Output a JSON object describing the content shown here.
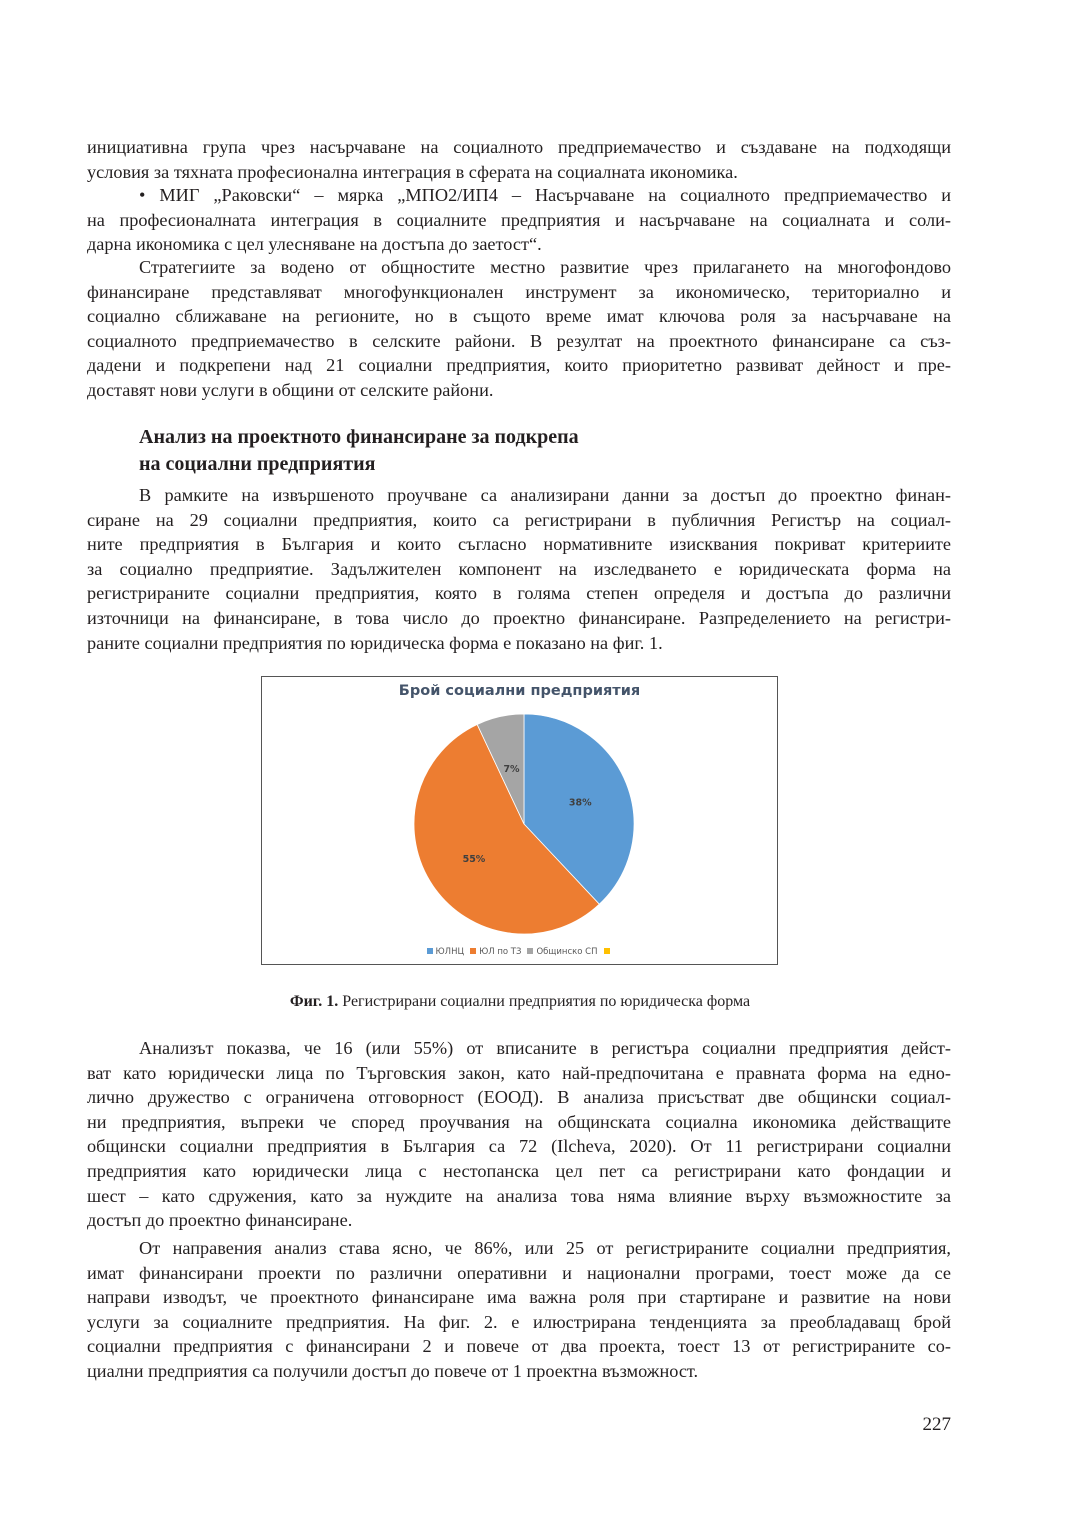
{
  "paragraphs": {
    "p1": [
      "инициативна група чрез насърчаване на социалното предприемачество и създаване на подходящи",
      "условия за тяхната професионална интеграция в сферата на социалната икономика."
    ],
    "p2": [
      "• МИГ „Раковски“ – мярка „МПО2/ИП4 – Насърчаване на социалното предприемачество и",
      "на професионалната интеграция в социалните предприятия и насърчаване на социалната и соли-",
      "дарна икономика с цел улесняване на достъпа до заетост“."
    ],
    "p3": [
      "Стратегиите за водено от общностите местно развитие чрез прилагането на многофондово",
      "финансиране представляват многофункционален инструмент за икономическо, териториално и",
      "социално сближаване на регионите, но в същото време имат ключова роля за насърчаване на",
      "социалното предприемачество в селските райони. В резултат на проектното финансиране са съз-",
      "дадени и подкрепени над 21 социални предприятия, които приоритетно развиват дейност и пре-",
      "доставят нови услуги в общини от селските райони."
    ],
    "p4": [
      "В рамките на извършеното проучване са анализирани данни за достъп до проектно финан-",
      "сиране на 29 социални предприятия, които са регистрирани в публичния Регистър на социал-",
      "ните предприятия в България и които съгласно нормативните изисквания покриват критериите",
      "за социално предприятие. Задължителен компонент на изследването е юридическата форма на",
      "регистрираните социални предприятия, която в голяма степен определя и достъпа до различни",
      "източници на финансиране, в това число до проектно финансиране. Разпределението на регистри-",
      "раните социални предприятия по юридическа форма е показано на фиг. 1."
    ],
    "p5": [
      "Анализът показва, че 16 (или 55%) от вписаните в регистъра социални предприятия дейст-",
      "ват като юридически лица по Търговския закон, като най-предпочитана е правната форма на едно-",
      "лично дружество с ограничена отговорност (ЕООД). В анализа присъстват две общински социал-",
      "ни предприятия, въпреки че според проучвания на общинската социална икономика действащите",
      "общински социални предприятия в България са 72 (Ilcheva, 2020). От 11 регистрирани социални",
      "предприятия като юридически лица с нестопанска цел пет са регистрирани като фондации и",
      "шест  – като сдружения, като за нуждите на анализа това няма влияние върху възможностите за",
      "достъп до проектно финансиране."
    ],
    "p6": [
      "От направения анализ става ясно, че 86%, или 25 от регистрираните социални предприятия,",
      "имат финансирани проекти по различни оперативни и национални програми, тоест може да се",
      "направи изводът, че проектното финансиране има важна роля при стартиране и развитие на нови",
      "услуги за социалните предприятия. На фиг. 2. е илюстрирана тенденцията за преобладаващ брой",
      "социални предприятия с финансирани 2 и повече от два проекта, тоест 13 от регистрираните со-",
      "циални предприятия са получили достъп до повече от 1 проектна възможност."
    ]
  },
  "heading": {
    "line1": "Анализ на проектното финансиране за подкрепа",
    "line2": "на социални предприятия"
  },
  "caption": {
    "label": "Фиг. 1.",
    "text": " Регистрирани социални предприятия по юридическа форма"
  },
  "page_number": "227",
  "chart_data": {
    "type": "pie",
    "title": "Брой социални предприятия",
    "start_angle": "top, clockwise",
    "slices": [
      {
        "name": "ЮЛНЦ",
        "value": 38,
        "label": "38%",
        "color": "#5b9bd5"
      },
      {
        "name": "ЮЛ по ТЗ",
        "value": 55,
        "label": "55%",
        "color": "#ed7d31"
      },
      {
        "name": "Общинско СП",
        "value": 7,
        "label": "7%",
        "color": "#a5a5a5"
      }
    ],
    "legend": [
      {
        "name": "ЮЛНЦ",
        "color": "#5b9bd5"
      },
      {
        "name": "ЮЛ по ТЗ",
        "color": "#ed7d31"
      },
      {
        "name": "Общинско СП",
        "color": "#a5a5a5"
      },
      {
        "name": "",
        "color": "#ffc000"
      }
    ],
    "legend_position": "bottom"
  }
}
